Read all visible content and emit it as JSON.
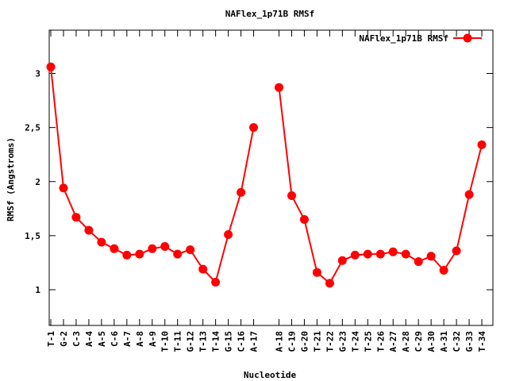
{
  "chart_data": {
    "type": "line",
    "title": "NAFlex_1p71B RMSf",
    "xlabel": "Nucleotide",
    "ylabel": "RMSf (Angstroms)",
    "ylim": [
      0.67,
      3.4
    ],
    "yticks": [
      1,
      1.5,
      2,
      2.5,
      3
    ],
    "ytick_labels": [
      "1",
      "1,5",
      "2",
      "2,5",
      "3"
    ],
    "legend_position": "top-right",
    "grid": false,
    "series": [
      {
        "name": "NAFlex_1p71B RMSf",
        "color": "#ff0000",
        "segments": [
          {
            "categories": [
              "T-1",
              "G-2",
              "C-3",
              "A-4",
              "A-5",
              "C-6",
              "A-7",
              "A-8",
              "A-9",
              "T-10",
              "T-11",
              "G-12",
              "T-13",
              "T-14",
              "G-15",
              "C-16",
              "A-17"
            ],
            "values": [
              3.06,
              1.94,
              1.67,
              1.55,
              1.44,
              1.38,
              1.32,
              1.33,
              1.38,
              1.4,
              1.33,
              1.37,
              1.19,
              1.07,
              1.51,
              1.9,
              2.5
            ]
          },
          {
            "categories": [
              "A-18",
              "C-19",
              "G-20",
              "T-21",
              "T-22",
              "G-23",
              "T-24",
              "T-25",
              "T-26",
              "A-27",
              "A-28",
              "C-29",
              "A-30",
              "A-31",
              "C-32",
              "G-33",
              "T-34"
            ],
            "values": [
              2.87,
              1.87,
              1.65,
              1.16,
              1.06,
              1.27,
              1.32,
              1.33,
              1.33,
              1.35,
              1.33,
              1.26,
              1.31,
              1.18,
              1.36,
              1.88,
              2.34
            ]
          }
        ]
      }
    ]
  }
}
